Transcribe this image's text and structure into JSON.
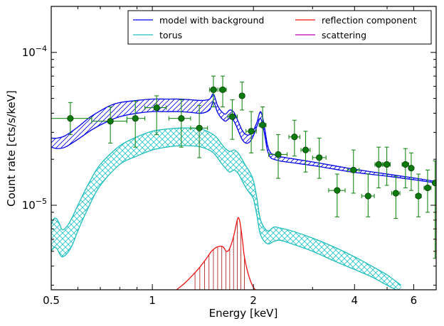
{
  "chart_data": {
    "type": "line",
    "xlabel": "Energy [keV]",
    "ylabel": "Count rate [cts/s/keV]",
    "xscale": "log",
    "yscale": "log",
    "xlim": [
      0.5,
      7.0
    ],
    "ylim": [
      2.8e-06,
      0.0002
    ],
    "x_tick_labels": [
      {
        "value": 0.5,
        "label": "0.5"
      },
      {
        "value": 1,
        "label": "1"
      },
      {
        "value": 2,
        "label": "2"
      },
      {
        "value": 4,
        "label": "4"
      },
      {
        "value": 6,
        "label": "6"
      }
    ],
    "y_tick_labels": [
      {
        "value": 0.0001,
        "base": "10",
        "exp": "−4"
      },
      {
        "value": 1e-05,
        "base": "10",
        "exp": "−5"
      }
    ],
    "legend": {
      "placement": "top-right",
      "entries": [
        {
          "label": "model with background",
          "color": "#0000ee"
        },
        {
          "label": "reflection component",
          "color": "#ee1111"
        },
        {
          "label": "torus",
          "color": "#1fbfbf"
        },
        {
          "label": "scattering",
          "color": "#bb00bb"
        }
      ]
    },
    "colors": {
      "model": "#0000ee",
      "torus": "#1fbfbf",
      "reflection": "#ee1111",
      "data": "#1a8a1a",
      "marker": "#0c7a0c"
    },
    "series": [
      {
        "name": "model with background",
        "kind": "band",
        "x": [
          0.5,
          0.52,
          0.55,
          0.6,
          0.65,
          0.7,
          0.75,
          0.8,
          0.9,
          1.0,
          1.1,
          1.2,
          1.3,
          1.4,
          1.48,
          1.52,
          1.56,
          1.6,
          1.65,
          1.7,
          1.75,
          1.8,
          1.85,
          1.9,
          1.95,
          2.0,
          2.05,
          2.1,
          2.15,
          2.2,
          2.25,
          2.3,
          2.4,
          2.6,
          3.0,
          3.5,
          4.0,
          5.0,
          6.0,
          7.0
        ],
        "lower": [
          2.4e-05,
          2.35e-05,
          2.4e-05,
          2.7e-05,
          3.05e-05,
          3.35e-05,
          3.6e-05,
          3.8e-05,
          4e-05,
          4.1e-05,
          4.1e-05,
          4.1e-05,
          4.05e-05,
          4e-05,
          4.2e-05,
          4.75e-05,
          4.1e-05,
          3.75e-05,
          3.55e-05,
          3.7e-05,
          3.55e-05,
          3.1e-05,
          2.7e-05,
          2.55e-05,
          2.6e-05,
          2.85e-05,
          3.3e-05,
          3.7e-05,
          3.05e-05,
          2.3e-05,
          2.05e-05,
          2e-05,
          1.95e-05,
          1.9e-05,
          1.82e-05,
          1.72e-05,
          1.64e-05,
          1.55e-05,
          1.47e-05,
          1.4e-05
        ],
        "upper": [
          2.75e-05,
          2.75e-05,
          2.85e-05,
          3.25e-05,
          3.75e-05,
          4.15e-05,
          4.5e-05,
          4.7e-05,
          4.85e-05,
          4.95e-05,
          4.95e-05,
          4.95e-05,
          4.9e-05,
          4.85e-05,
          4.95e-05,
          5.35e-05,
          4.55e-05,
          4.15e-05,
          3.95e-05,
          4.2e-05,
          4.05e-05,
          3.55e-05,
          3.1e-05,
          2.9e-05,
          2.9e-05,
          3.1e-05,
          3.5e-05,
          4.1e-05,
          3.4e-05,
          2.5e-05,
          2.2e-05,
          2.15e-05,
          2.08e-05,
          2.02e-05,
          1.92e-05,
          1.81e-05,
          1.72e-05,
          1.6e-05,
          1.51e-05,
          1.43e-05
        ]
      },
      {
        "name": "torus",
        "kind": "band",
        "x": [
          0.5,
          0.51,
          0.52,
          0.53,
          0.54,
          0.56,
          0.58,
          0.6,
          0.65,
          0.7,
          0.8,
          0.9,
          1.0,
          1.1,
          1.2,
          1.3,
          1.4,
          1.5,
          1.55,
          1.6,
          1.65,
          1.7,
          1.75,
          1.8,
          1.85,
          1.9,
          1.95,
          2.0,
          2.05,
          2.1,
          2.2,
          2.3,
          2.4,
          2.6,
          3.0,
          3.5,
          4.0,
          4.5,
          5.0,
          5.5
        ],
        "lower": [
          5e-06,
          5.3e-06,
          5.2e-06,
          4.8e-06,
          4.6e-06,
          4.9e-06,
          5.6e-06,
          6.8e-06,
          1e-05,
          1.35e-05,
          1.85e-05,
          2.1e-05,
          2.3e-05,
          2.4e-05,
          2.45e-05,
          2.45e-05,
          2.4e-05,
          2.25e-05,
          2.1e-05,
          1.9e-05,
          1.75e-05,
          1.65e-05,
          1.7e-05,
          1.62e-05,
          1.45e-05,
          1.3e-05,
          1.2e-05,
          1.1e-05,
          8.5e-06,
          6.4e-06,
          5.6e-06,
          5.8e-06,
          5.9e-06,
          5.6e-06,
          5e-06,
          4.3e-06,
          3.8e-06,
          3.4e-06,
          3e-06,
          2.7e-06
        ],
        "upper": [
          7.5e-06,
          8.2e-06,
          8.1e-06,
          7.5e-06,
          6.9e-06,
          7.4e-06,
          8.5e-06,
          1e-05,
          1.42e-05,
          1.85e-05,
          2.45e-05,
          2.8e-05,
          3.05e-05,
          3.15e-05,
          3.2e-05,
          3.2e-05,
          3.15e-05,
          2.95e-05,
          2.8e-05,
          2.55e-05,
          2.35e-05,
          2.25e-05,
          2.3e-05,
          2.2e-05,
          2e-05,
          1.8e-05,
          1.65e-05,
          1.45e-05,
          1.1e-05,
          8e-06,
          6.8e-06,
          7.2e-06,
          7.1e-06,
          6.8e-06,
          6.1e-06,
          5.3e-06,
          4.6e-06,
          4e-06,
          3.5e-06,
          3e-06
        ]
      },
      {
        "name": "reflection component",
        "kind": "line",
        "x": [
          1.18,
          1.25,
          1.32,
          1.38,
          1.44,
          1.5,
          1.55,
          1.6,
          1.63,
          1.66,
          1.69,
          1.72,
          1.75,
          1.78,
          1.8,
          1.82,
          1.84,
          1.86,
          1.88,
          1.92,
          1.96,
          2.0,
          2.03
        ],
        "y": [
          2.8e-06,
          3.1e-06,
          3.5e-06,
          3.9e-06,
          4.4e-06,
          5e-06,
          5.3e-06,
          5.4e-06,
          5.3e-06,
          5e-06,
          5.1e-06,
          5.6e-06,
          6.4e-06,
          7.6e-06,
          8.3e-06,
          7.9e-06,
          6.8e-06,
          5.6e-06,
          4.6e-06,
          3.7e-06,
          3.2e-06,
          2.9e-06,
          2.8e-06
        ]
      },
      {
        "name": "data",
        "kind": "points",
        "points": [
          {
            "x": 0.57,
            "y": 3.7e-05,
            "xlo": 0.5,
            "xhi": 0.66,
            "ylo": 2.9e-05,
            "yhi": 4.7e-05
          },
          {
            "x": 0.75,
            "y": 3.55e-05,
            "xlo": 0.66,
            "xhi": 0.84,
            "ylo": 2.55e-05,
            "yhi": 4.4e-05
          },
          {
            "x": 0.89,
            "y": 3.7e-05,
            "xlo": 0.84,
            "xhi": 0.95,
            "ylo": 2.4e-05,
            "yhi": 4.8e-05
          },
          {
            "x": 1.03,
            "y": 4.35e-05,
            "xlo": 0.95,
            "xhi": 1.1,
            "ylo": 2.9e-05,
            "yhi": 5.2e-05
          },
          {
            "x": 1.22,
            "y": 3.7e-05,
            "xlo": 1.12,
            "xhi": 1.3,
            "ylo": 2.4e-05,
            "yhi": 4.9e-05
          },
          {
            "x": 1.38,
            "y": 3.2e-05,
            "xlo": 1.3,
            "xhi": 1.46,
            "ylo": 2.05e-05,
            "yhi": 4.5e-05
          },
          {
            "x": 1.52,
            "y": 5.7e-05,
            "xlo": 1.48,
            "xhi": 1.56,
            "ylo": 4.4e-05,
            "yhi": 7e-05
          },
          {
            "x": 1.62,
            "y": 5.7e-05,
            "xlo": 1.58,
            "xhi": 1.66,
            "ylo": 4.4e-05,
            "yhi": 7e-05
          },
          {
            "x": 1.73,
            "y": 3.8e-05,
            "xlo": 1.68,
            "xhi": 1.79,
            "ylo": 2.7e-05,
            "yhi": 4.9e-05
          },
          {
            "x": 1.85,
            "y": 5.2e-05,
            "xlo": 1.82,
            "xhi": 1.88,
            "ylo": 4.2e-05,
            "yhi": 6.4e-05
          },
          {
            "x": 1.97,
            "y": 3.05e-05,
            "xlo": 1.9,
            "xhi": 2.04,
            "ylo": 2.2e-05,
            "yhi": 4.1e-05
          },
          {
            "x": 2.13,
            "y": 3.35e-05,
            "xlo": 2.08,
            "xhi": 2.18,
            "ylo": 2.3e-05,
            "yhi": 4.4e-05
          },
          {
            "x": 2.37,
            "y": 2.15e-05,
            "xlo": 2.22,
            "xhi": 2.52,
            "ylo": 1.5e-05,
            "yhi": 2.9e-05
          },
          {
            "x": 2.65,
            "y": 2.8e-05,
            "xlo": 2.55,
            "xhi": 2.75,
            "ylo": 2.1e-05,
            "yhi": 3.6e-05
          },
          {
            "x": 2.86,
            "y": 2.3e-05,
            "xlo": 2.77,
            "xhi": 2.95,
            "ylo": 1.65e-05,
            "yhi": 3.05e-05
          },
          {
            "x": 3.14,
            "y": 2.05e-05,
            "xlo": 3.0,
            "xhi": 3.29,
            "ylo": 1.5e-05,
            "yhi": 2.75e-05
          },
          {
            "x": 3.55,
            "y": 1.25e-05,
            "xlo": 3.35,
            "xhi": 3.75,
            "ylo": 8.4e-06,
            "yhi": 1.6e-05
          },
          {
            "x": 3.97,
            "y": 1.7e-05,
            "xlo": 3.81,
            "xhi": 4.13,
            "ylo": 1.2e-05,
            "yhi": 2.3e-05
          },
          {
            "x": 4.39,
            "y": 1.15e-05,
            "xlo": 4.2,
            "xhi": 4.58,
            "ylo": 8.4e-06,
            "yhi": 1.6e-05
          },
          {
            "x": 4.72,
            "y": 1.85e-05,
            "xlo": 4.6,
            "xhi": 4.84,
            "ylo": 1.3e-05,
            "yhi": 2.4e-05
          },
          {
            "x": 4.99,
            "y": 1.85e-05,
            "xlo": 4.87,
            "xhi": 5.11,
            "ylo": 1.35e-05,
            "yhi": 2.4e-05
          },
          {
            "x": 5.31,
            "y": 1.2e-05,
            "xlo": 5.16,
            "xhi": 5.46,
            "ylo": 8.2e-06,
            "yhi": 1.55e-05
          },
          {
            "x": 5.67,
            "y": 1.85e-05,
            "xlo": 5.54,
            "xhi": 5.8,
            "ylo": 1.3e-05,
            "yhi": 2.35e-05
          },
          {
            "x": 5.9,
            "y": 1.75e-05,
            "xlo": 5.82,
            "xhi": 5.98,
            "ylo": 1.25e-05,
            "yhi": 2.2e-05
          },
          {
            "x": 6.2,
            "y": 1.15e-05,
            "xlo": 6.08,
            "xhi": 6.32,
            "ylo": 8.4e-06,
            "yhi": 1.6e-05
          },
          {
            "x": 6.6,
            "y": 1.3e-05,
            "xlo": 6.44,
            "xhi": 6.76,
            "ylo": 9e-06,
            "yhi": 1.7e-05
          },
          {
            "x": 6.95,
            "y": 1.4e-05,
            "xlo": 6.9,
            "xhi": 7.0,
            "ylo": 4.5e-06,
            "yhi": 1.95e-05
          }
        ]
      }
    ]
  }
}
